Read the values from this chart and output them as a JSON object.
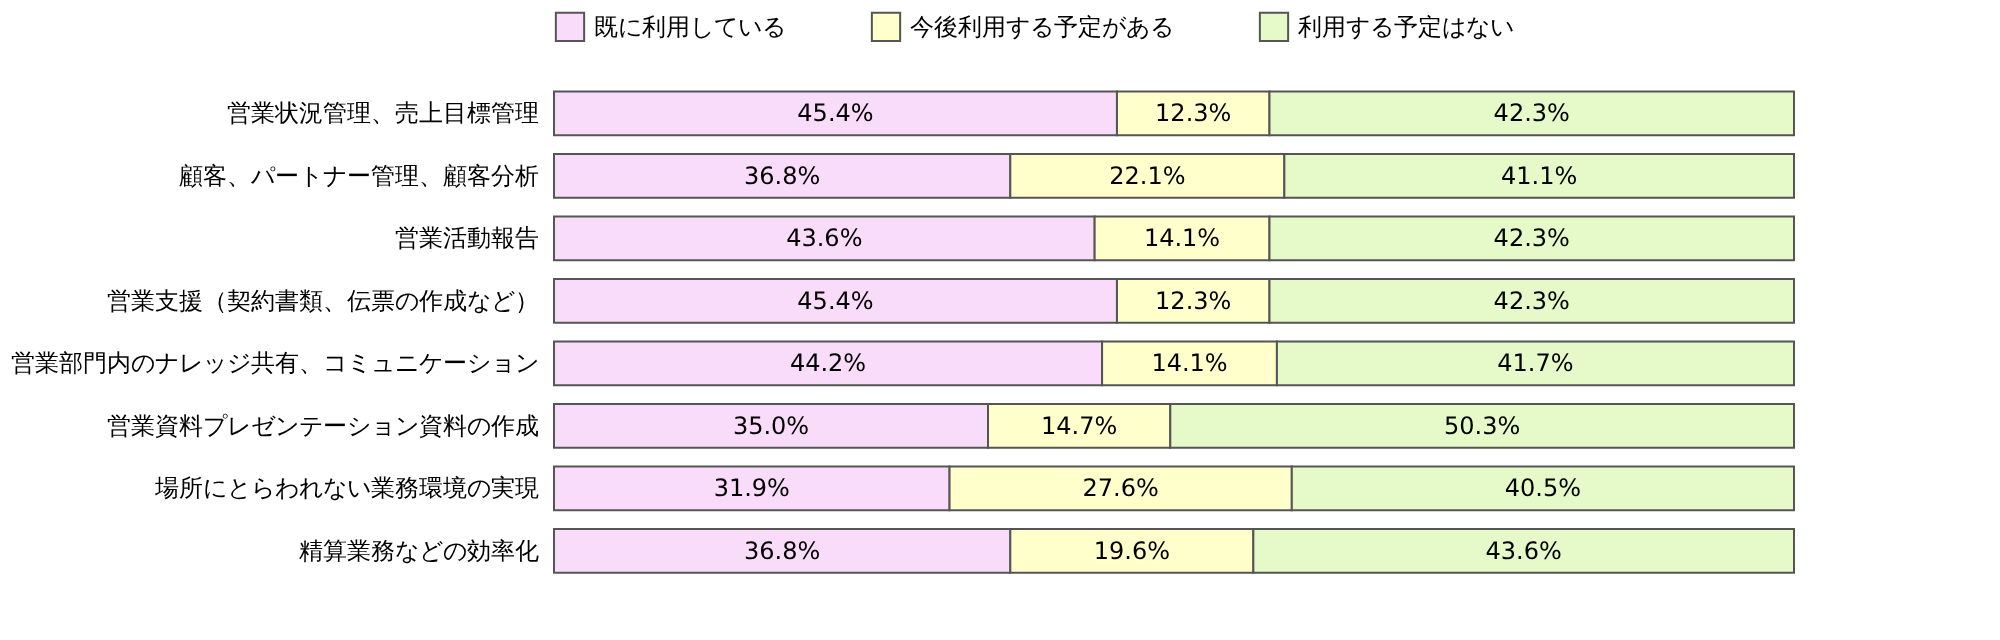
{
  "chart_data": {
    "type": "bar",
    "orientation": "horizontal",
    "stacked": true,
    "legend": "top",
    "grid": false,
    "tick_labels": "y",
    "categories": [
      "営業状況管理、売上目標管理",
      "顧客、パートナー管理、顧客分析",
      "営業活動報告",
      "営業支援（契約書類、伝票の作成など）",
      "営業部門内のナレッジ共有、コミュニケーション",
      "営業資料プレゼンテーション資料の作成",
      "場所にとらわれない業務環境の実現",
      "精算業務などの効率化"
    ],
    "series": [
      {
        "name": "既に利用している",
        "color": "#f9dcf9",
        "values": [
          45.4,
          36.8,
          43.6,
          45.4,
          44.2,
          35.0,
          31.9,
          36.8
        ],
        "value_labels": [
          "45.4%",
          "36.8%",
          "43.6%",
          "45.4%",
          "44.2%",
          "35.0%",
          "31.9%",
          "36.8%"
        ]
      },
      {
        "name": "今後利用する予定がある",
        "color": "#ffffcc",
        "values": [
          12.3,
          22.1,
          14.1,
          12.3,
          14.1,
          14.7,
          27.6,
          19.6
        ],
        "value_labels": [
          "12.3%",
          "22.1%",
          "14.1%",
          "12.3%",
          "14.1%",
          "14.7%",
          "27.6%",
          "19.6%"
        ]
      },
      {
        "name": "利用する予定はない",
        "color": "#e6f9c8",
        "values": [
          42.3,
          41.1,
          42.3,
          42.3,
          41.7,
          50.3,
          40.5,
          43.6
        ],
        "value_labels": [
          "42.3%",
          "41.1%",
          "42.3%",
          "42.3%",
          "41.7%",
          "50.3%",
          "40.5%",
          "43.6%"
        ]
      }
    ]
  }
}
